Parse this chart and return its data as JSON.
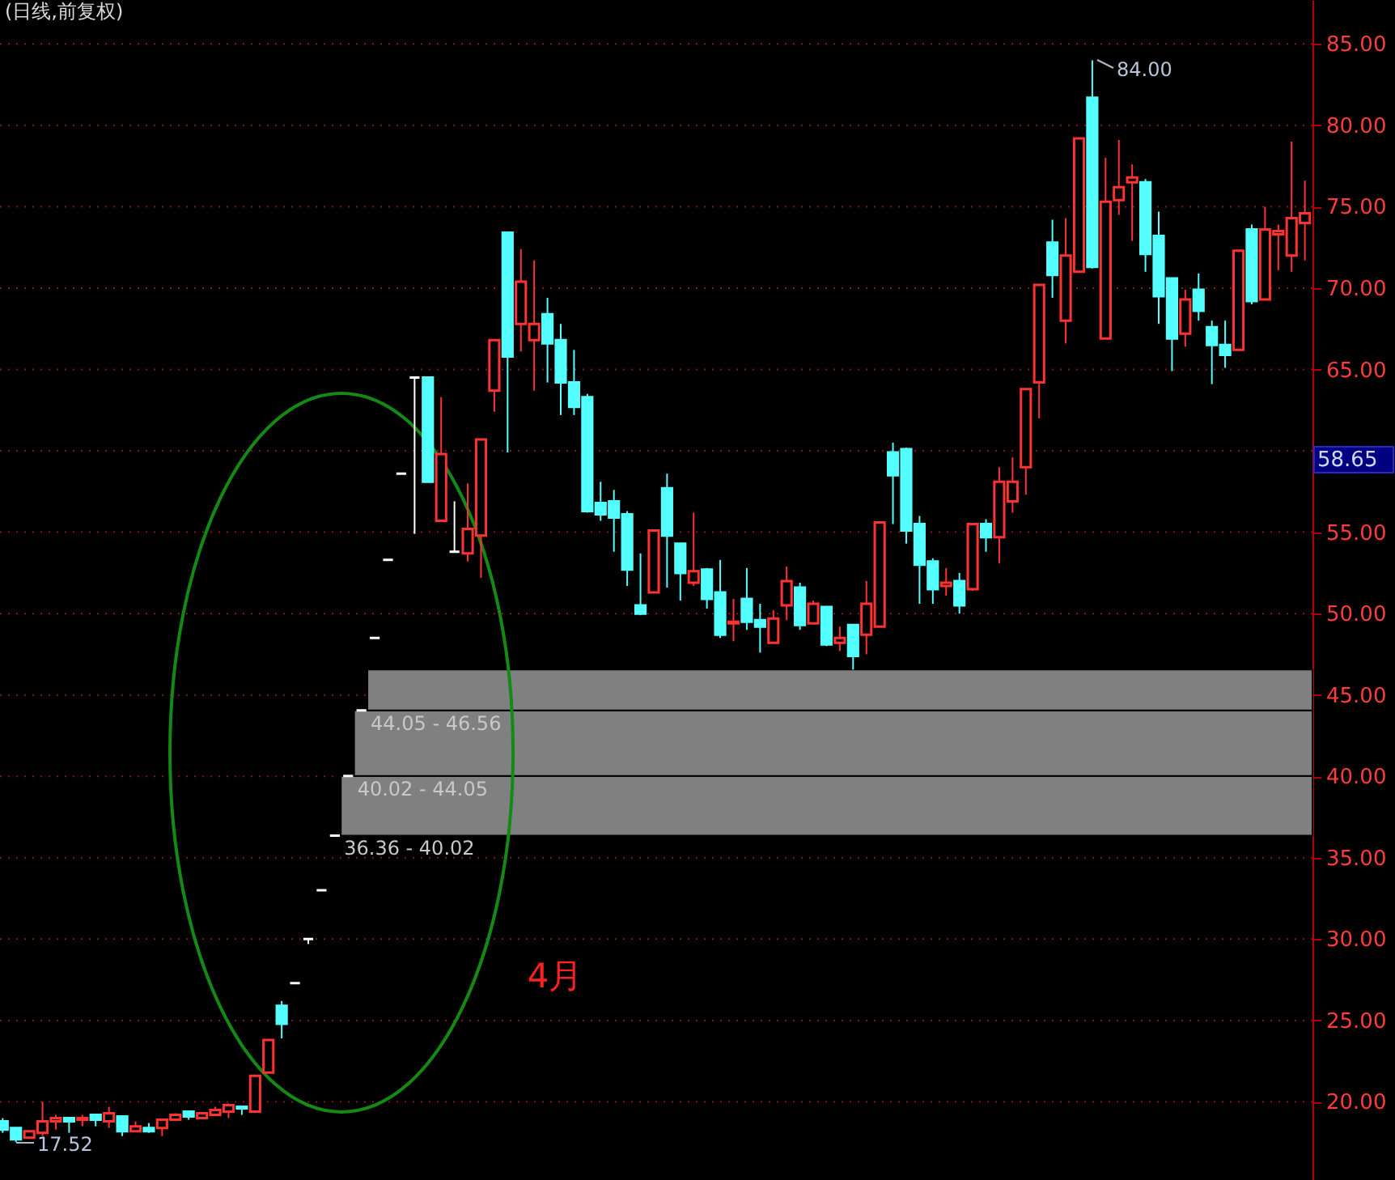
{
  "chart_data": {
    "type": "candlestick",
    "title": "(日线,前复权)",
    "categories": [
      null,
      null,
      null,
      null,
      null,
      null,
      null,
      null,
      null,
      null,
      null,
      null,
      null,
      null,
      null,
      null,
      null,
      null,
      null,
      null,
      null,
      null,
      null,
      null,
      null,
      null,
      null,
      null,
      null,
      null,
      null,
      null,
      null,
      null,
      null,
      null,
      null,
      null,
      null,
      null,
      null,
      null,
      null,
      null,
      null,
      null,
      null,
      null,
      null,
      null,
      null,
      null,
      null,
      null,
      null,
      null,
      null,
      null,
      null,
      null,
      null,
      null,
      null,
      null,
      null,
      null,
      null,
      null,
      null,
      null,
      null,
      null,
      null,
      null,
      null,
      null,
      null,
      null,
      null,
      null,
      null,
      null,
      null,
      null,
      null,
      null,
      null,
      null,
      null,
      null,
      null,
      null,
      null,
      null,
      null,
      null,
      null,
      null,
      null
    ],
    "ohlc": [
      [
        18.8,
        19.0,
        18.1,
        18.3
      ],
      [
        18.4,
        18.4,
        17.52,
        17.7
      ],
      [
        17.8,
        18.2,
        17.8,
        18.2
      ],
      [
        18.1,
        20.0,
        17.9,
        18.8
      ],
      [
        18.8,
        19.2,
        18.3,
        19.0
      ],
      [
        19.0,
        19.0,
        18.1,
        18.8
      ],
      [
        18.9,
        19.2,
        18.5,
        19.0
      ],
      [
        19.2,
        19.2,
        18.5,
        18.9
      ],
      [
        18.8,
        19.7,
        18.4,
        19.3
      ],
      [
        19.1,
        19.1,
        17.9,
        18.2
      ],
      [
        18.2,
        18.8,
        18.2,
        18.5
      ],
      [
        18.4,
        18.7,
        18.1,
        18.2
      ],
      [
        18.4,
        18.9,
        17.9,
        18.9
      ],
      [
        18.9,
        19.3,
        18.9,
        19.2
      ],
      [
        19.4,
        19.4,
        18.9,
        19.1
      ],
      [
        19.0,
        19.3,
        19.0,
        19.3
      ],
      [
        19.2,
        19.7,
        19.2,
        19.5
      ],
      [
        19.4,
        19.9,
        19.0,
        19.8
      ],
      [
        19.7,
        19.7,
        19.2,
        19.6
      ],
      [
        19.4,
        21.6,
        19.4,
        21.6
      ],
      [
        21.8,
        23.8,
        21.8,
        23.8
      ],
      [
        25.9,
        26.2,
        23.9,
        24.8
      ],
      [
        27.3,
        27.3,
        27.3,
        27.3
      ],
      [
        30.0,
        30.0,
        29.7,
        30.0
      ],
      [
        33.0,
        33.0,
        33.0,
        33.0
      ],
      [
        36.36,
        36.36,
        36.36,
        36.36
      ],
      [
        40.02,
        40.02,
        40.02,
        40.02
      ],
      [
        44.05,
        44.05,
        44.05,
        44.05
      ],
      [
        48.5,
        48.5,
        48.5,
        48.5
      ],
      [
        53.3,
        53.3,
        53.3,
        53.3
      ],
      [
        58.6,
        58.6,
        58.6,
        58.6
      ],
      [
        64.5,
        64.5,
        54.9,
        64.5
      ],
      [
        64.5,
        64.5,
        58.1,
        58.1
      ],
      [
        55.7,
        63.3,
        55.7,
        59.8
      ],
      [
        53.8,
        56.9,
        53.8,
        53.8
      ],
      [
        53.7,
        58.0,
        53.2,
        55.2
      ],
      [
        54.8,
        60.7,
        52.2,
        60.7
      ],
      [
        63.7,
        66.8,
        62.4,
        66.8
      ],
      [
        73.4,
        73.4,
        59.9,
        65.8
      ],
      [
        67.8,
        72.4,
        66.1,
        70.4
      ],
      [
        66.8,
        71.7,
        63.7,
        67.8
      ],
      [
        68.4,
        69.4,
        64.2,
        66.6
      ],
      [
        66.8,
        67.8,
        62.2,
        64.2
      ],
      [
        64.2,
        66.2,
        62.2,
        62.7
      ],
      [
        63.3,
        63.5,
        56.2,
        56.3
      ],
      [
        56.8,
        58.1,
        55.7,
        56.1
      ],
      [
        56.9,
        57.6,
        53.8,
        55.9
      ],
      [
        56.1,
        56.3,
        51.7,
        52.7
      ],
      [
        50.5,
        53.7,
        49.9,
        50.0
      ],
      [
        51.3,
        55.1,
        51.3,
        55.1
      ],
      [
        57.7,
        58.6,
        51.6,
        54.8
      ],
      [
        54.3,
        54.3,
        50.8,
        52.5
      ],
      [
        51.9,
        56.2,
        51.7,
        52.6
      ],
      [
        52.7,
        52.8,
        50.3,
        50.9
      ],
      [
        51.3,
        53.3,
        48.5,
        48.7
      ],
      [
        49.4,
        50.9,
        48.3,
        49.5
      ],
      [
        50.9,
        52.8,
        49.0,
        49.5
      ],
      [
        49.6,
        50.6,
        47.6,
        49.2
      ],
      [
        48.2,
        50.2,
        48.2,
        49.7
      ],
      [
        50.5,
        52.9,
        49.6,
        52.0
      ],
      [
        51.6,
        51.9,
        49.0,
        49.3
      ],
      [
        49.4,
        50.8,
        49.4,
        50.6
      ],
      [
        50.4,
        50.4,
        48.0,
        48.1
      ],
      [
        48.2,
        49.2,
        47.7,
        48.5
      ],
      [
        49.3,
        49.3,
        46.56,
        47.4
      ],
      [
        48.7,
        52.0,
        47.5,
        50.6
      ],
      [
        49.2,
        55.6,
        49.2,
        55.6
      ],
      [
        59.9,
        60.5,
        55.5,
        58.5
      ],
      [
        60.1,
        60.2,
        54.3,
        55.1
      ],
      [
        55.5,
        56.0,
        50.6,
        53.0
      ],
      [
        53.2,
        53.4,
        50.6,
        51.5
      ],
      [
        51.7,
        52.8,
        51.1,
        51.9
      ],
      [
        52.0,
        52.5,
        50.0,
        50.5
      ],
      [
        51.5,
        55.5,
        51.4,
        55.5
      ],
      [
        55.5,
        55.8,
        53.8,
        54.7
      ],
      [
        54.7,
        59.0,
        53.1,
        58.1
      ],
      [
        56.9,
        59.6,
        56.2,
        58.1
      ],
      [
        59.0,
        63.8,
        57.3,
        63.8
      ],
      [
        64.2,
        70.2,
        62.0,
        70.2
      ],
      [
        72.8,
        74.2,
        69.4,
        70.8
      ],
      [
        68.0,
        74.3,
        66.6,
        72.0
      ],
      [
        71.0,
        79.2,
        71.0,
        79.2
      ],
      [
        81.7,
        84.0,
        71.2,
        71.3
      ],
      [
        66.9,
        78.0,
        66.9,
        75.3
      ],
      [
        75.4,
        79.1,
        74.5,
        76.2
      ],
      [
        76.5,
        77.6,
        72.9,
        76.8
      ],
      [
        76.5,
        76.7,
        71.0,
        72.1
      ],
      [
        73.2,
        74.7,
        67.8,
        69.5
      ],
      [
        70.6,
        70.6,
        64.9,
        66.9
      ],
      [
        67.2,
        69.9,
        66.4,
        69.3
      ],
      [
        69.9,
        70.9,
        68.0,
        68.6
      ],
      [
        67.6,
        68.0,
        64.1,
        66.5
      ],
      [
        66.5,
        68.0,
        65.1,
        65.9
      ],
      [
        66.2,
        72.3,
        66.2,
        72.3
      ],
      [
        73.6,
        73.9,
        69.0,
        69.2
      ],
      [
        69.3,
        75.0,
        69.3,
        73.6
      ],
      [
        73.3,
        73.9,
        71.1,
        73.5
      ],
      [
        72.0,
        79.0,
        71.0,
        74.3
      ],
      [
        74.0,
        76.6,
        71.7,
        74.6
      ]
    ],
    "colors": [
      "#54ffff",
      "#54ffff",
      "#ff3232",
      "#ff3232",
      "#ff3232",
      "#54ffff",
      "#ff3232",
      "#54ffff",
      "#ff3232",
      "#54ffff",
      "#ff3232",
      "#54ffff",
      "#ff3232",
      "#ff3232",
      "#54ffff",
      "#ff3232",
      "#ff3232",
      "#ff3232",
      "#54ffff",
      "#ff3232",
      "#ff3232",
      "#54ffff",
      "#ffffff",
      "#ffffff",
      "#ffffff",
      "#ffffff",
      "#ffffff",
      "#ffffff",
      "#ffffff",
      "#ffffff",
      "#ffffff",
      "#ffffff",
      "#54ffff",
      "#ff3232",
      "#ffffff",
      "#ff3232",
      "#ff3232",
      "#ff3232",
      "#54ffff",
      "#ff3232",
      "#ff3232",
      "#54ffff",
      "#54ffff",
      "#54ffff",
      "#54ffff",
      "#54ffff",
      "#54ffff",
      "#54ffff",
      "#54ffff",
      "#ff3232",
      "#54ffff",
      "#54ffff",
      "#ff3232",
      "#54ffff",
      "#54ffff",
      "#ff3232",
      "#54ffff",
      "#54ffff",
      "#ff3232",
      "#ff3232",
      "#54ffff",
      "#ff3232",
      "#54ffff",
      "#ff3232",
      "#54ffff",
      "#ff3232",
      "#ff3232",
      "#54ffff",
      "#54ffff",
      "#54ffff",
      "#54ffff",
      "#ff3232",
      "#54ffff",
      "#ff3232",
      "#54ffff",
      "#ff3232",
      "#ff3232",
      "#ff3232",
      "#ff3232",
      "#54ffff",
      "#ff3232",
      "#ff3232",
      "#54ffff",
      "#ff3232",
      "#ff3232",
      "#ff3232",
      "#54ffff",
      "#54ffff",
      "#54ffff",
      "#ff3232",
      "#54ffff",
      "#54ffff",
      "#54ffff",
      "#ff3232",
      "#54ffff",
      "#ff3232",
      "#ff3232",
      "#ff3232",
      "#ff3232"
    ],
    "ylim": [
      15.2,
      87.7
    ],
    "yticks": [
      {
        "value": 20,
        "label": "20.00"
      },
      {
        "value": 25,
        "label": "25.00"
      },
      {
        "value": 30,
        "label": "30.00"
      },
      {
        "value": 35,
        "label": "35.00"
      },
      {
        "value": 40,
        "label": "40.00"
      },
      {
        "value": 45,
        "label": "45.00"
      },
      {
        "value": 50,
        "label": "50.00"
      },
      {
        "value": 55,
        "label": "55.00"
      },
      {
        "value": 60,
        "label": null
      },
      {
        "value": 65,
        "label": "65.00"
      },
      {
        "value": 70,
        "label": "70.00"
      },
      {
        "value": 75,
        "label": "75.00"
      },
      {
        "value": 80,
        "label": "80.00"
      },
      {
        "value": 85,
        "label": "85.00"
      }
    ],
    "grid": "y",
    "tick_labels": "y",
    "bands": [
      {
        "axis": "y",
        "from": 36.36,
        "to": 40.02,
        "label": "36.36 - 40.02",
        "color": "#808080"
      },
      {
        "axis": "y",
        "from": 40.02,
        "to": 44.05,
        "label": "40.02 - 44.05",
        "color": "#808080"
      },
      {
        "axis": "y",
        "from": 44.05,
        "to": 46.56,
        "label": "44.05 - 46.56",
        "color": "#808080"
      }
    ],
    "annotations": [
      "84.00",
      "58.65",
      "4月",
      "17.52"
    ]
  }
}
